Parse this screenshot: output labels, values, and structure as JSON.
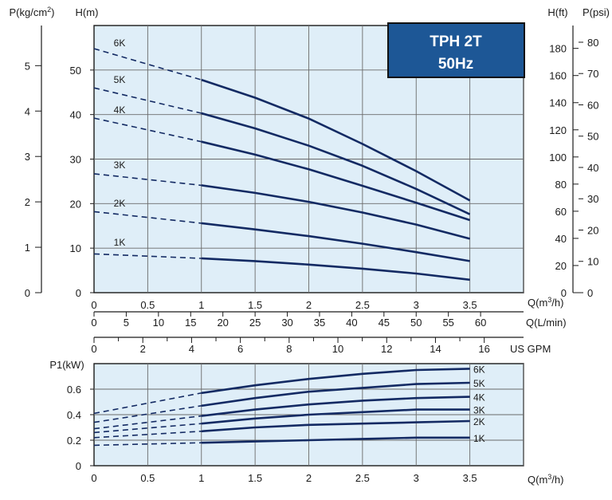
{
  "colors": {
    "plot_bg": "#dfeef8",
    "grid": "#6a6a6a",
    "curve": "#132a63",
    "title_bg": "#1d5796",
    "title_border": "#111111"
  },
  "title_box": {
    "line1": "TPH 2T",
    "line2": "50Hz"
  },
  "chart_data": [
    {
      "type": "line",
      "xlabel": "Q(m3/h)",
      "ylabel": "H(m)",
      "xlim": [
        0,
        4
      ],
      "ylim": [
        0,
        60
      ],
      "grid": true,
      "x_ticks": [
        "0",
        "0.5",
        "1",
        "1.5",
        "2",
        "2.5",
        "3",
        "3.5"
      ],
      "y_ticks": [
        "0",
        "10",
        "20",
        "30",
        "40",
        "50"
      ],
      "left_axis": {
        "label": "P(kg/cm2)",
        "ticks": [
          "0",
          "1",
          "2",
          "3",
          "4",
          "5"
        ]
      },
      "right_axis_ft": {
        "label": "H(ft)",
        "ticks": [
          "0",
          "20",
          "40",
          "60",
          "80",
          "100",
          "120",
          "140",
          "160",
          "180"
        ]
      },
      "right_axis_psi": {
        "label": "P(psi)",
        "ticks": [
          "0",
          "10",
          "20",
          "30",
          "40",
          "50",
          "60",
          "70",
          "80"
        ]
      },
      "lmin_axis": {
        "label": "Q(L/min)",
        "ticks": [
          "0",
          "5",
          "10",
          "15",
          "20",
          "25",
          "30",
          "35",
          "40",
          "45",
          "50",
          "55",
          "60"
        ]
      },
      "gpm_axis": {
        "label": "US GPM",
        "ticks": [
          "0",
          "2",
          "4",
          "6",
          "8",
          "10",
          "12",
          "14",
          "16"
        ]
      },
      "dashed_until_x": 1,
      "series": [
        {
          "name": "6K",
          "x": [
            0,
            1,
            1.5,
            2,
            2.5,
            3,
            3.5
          ],
          "y": [
            54.8,
            47.8,
            43.8,
            39.1,
            33.4,
            27.3,
            20.7
          ]
        },
        {
          "name": "5K",
          "x": [
            0,
            1,
            1.5,
            2,
            2.5,
            3,
            3.5
          ],
          "y": [
            46.0,
            40.3,
            36.9,
            33.0,
            28.5,
            23.3,
            17.6
          ]
        },
        {
          "name": "4K",
          "x": [
            0,
            1,
            1.5,
            2,
            2.5,
            3,
            3.5
          ],
          "y": [
            39.2,
            33.9,
            31.0,
            27.7,
            24.0,
            20.2,
            16.3
          ]
        },
        {
          "name": "3K",
          "x": [
            0,
            1,
            1.5,
            2,
            2.5,
            3,
            3.5
          ],
          "y": [
            26.7,
            24.1,
            22.4,
            20.4,
            18.0,
            15.3,
            12.1
          ]
        },
        {
          "name": "2K",
          "x": [
            0,
            1,
            1.5,
            2,
            2.5,
            3,
            3.5
          ],
          "y": [
            18.2,
            15.6,
            14.2,
            12.7,
            11.0,
            9.1,
            7.1
          ]
        },
        {
          "name": "1K",
          "x": [
            0,
            1,
            1.5,
            2,
            2.5,
            3,
            3.5
          ],
          "y": [
            8.7,
            7.7,
            7.1,
            6.3,
            5.4,
            4.3,
            2.9
          ]
        }
      ]
    },
    {
      "type": "line",
      "xlabel": "Q(m3/h)",
      "ylabel": "P1(kW)",
      "xlim": [
        0,
        4
      ],
      "ylim": [
        0,
        0.8
      ],
      "grid": true,
      "x_ticks": [
        "0",
        "0.5",
        "1",
        "1.5",
        "2",
        "2.5",
        "3",
        "3.5"
      ],
      "y_ticks": [
        "0",
        "0.2",
        "0.4",
        "0.6"
      ],
      "dashed_until_x": 1,
      "series": [
        {
          "name": "6K",
          "x": [
            0,
            1,
            1.5,
            2,
            2.5,
            3,
            3.5
          ],
          "y": [
            0.41,
            0.57,
            0.63,
            0.68,
            0.72,
            0.75,
            0.76
          ]
        },
        {
          "name": "5K",
          "x": [
            0,
            1,
            1.5,
            2,
            2.5,
            3,
            3.5
          ],
          "y": [
            0.34,
            0.47,
            0.53,
            0.58,
            0.61,
            0.64,
            0.65
          ]
        },
        {
          "name": "4K",
          "x": [
            0,
            1,
            1.5,
            2,
            2.5,
            3,
            3.5
          ],
          "y": [
            0.29,
            0.39,
            0.44,
            0.48,
            0.51,
            0.53,
            0.54
          ]
        },
        {
          "name": "3K",
          "x": [
            0,
            1,
            1.5,
            2,
            2.5,
            3,
            3.5
          ],
          "y": [
            0.26,
            0.33,
            0.37,
            0.4,
            0.42,
            0.44,
            0.44
          ]
        },
        {
          "name": "2K",
          "x": [
            0,
            1,
            1.5,
            2,
            2.5,
            3,
            3.5
          ],
          "y": [
            0.22,
            0.27,
            0.3,
            0.32,
            0.33,
            0.34,
            0.35
          ]
        },
        {
          "name": "1K",
          "x": [
            0,
            1,
            1.5,
            2,
            2.5,
            3,
            3.5
          ],
          "y": [
            0.16,
            0.18,
            0.19,
            0.2,
            0.21,
            0.22,
            0.22
          ]
        }
      ]
    }
  ]
}
